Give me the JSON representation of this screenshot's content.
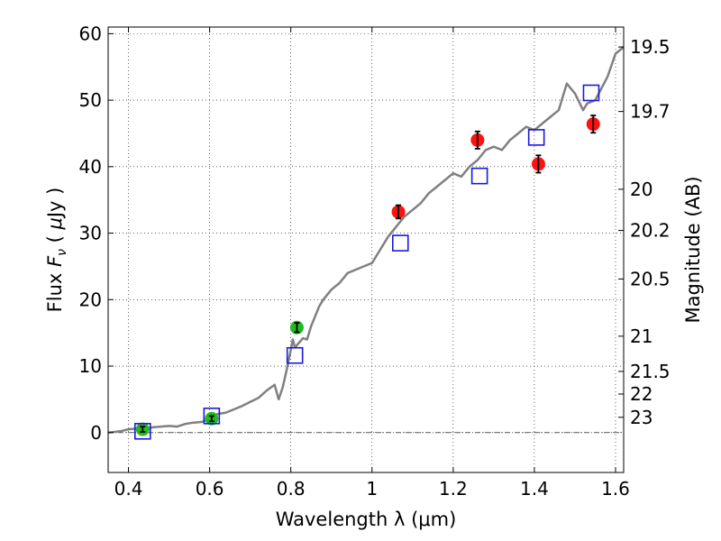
{
  "chart_data": {
    "type": "scatter",
    "xlabel": "Wavelength  λ (μm)",
    "ylabel": "Flux  F_ν  ( μJy )",
    "y2label": "Magnitude (AB)",
    "xlim": [
      0.35,
      1.62
    ],
    "ylim": [
      -6,
      61
    ],
    "grid": true,
    "x_ticks": [
      0.4,
      0.6,
      0.8,
      1.0,
      1.2,
      1.4,
      1.6
    ],
    "x_tick_labels": [
      "0.4",
      "0.6",
      "0.8",
      "1",
      "1.2",
      "1.4",
      "1.6"
    ],
    "y_ticks": [
      0,
      10,
      20,
      30,
      40,
      50,
      60
    ],
    "y_tick_labels": [
      "0",
      "10",
      "20",
      "30",
      "40",
      "50",
      "60"
    ],
    "y2_ticks": [
      {
        "label": "19.5",
        "flux": 58.0
      },
      {
        "label": "19.7",
        "flux": 48.3
      },
      {
        "label": "20",
        "flux": 36.6
      },
      {
        "label": "20.2",
        "flux": 30.4
      },
      {
        "label": "20.5",
        "flux": 23.1
      },
      {
        "label": "21",
        "flux": 14.5
      },
      {
        "label": "21.5",
        "flux": 9.2
      },
      {
        "label": "22",
        "flux": 5.8
      },
      {
        "label": "23",
        "flux": 2.3
      }
    ],
    "series": [
      {
        "kind": "line",
        "color": "#808080",
        "x": [
          0.35,
          0.38,
          0.4,
          0.42,
          0.44,
          0.46,
          0.48,
          0.5,
          0.52,
          0.54,
          0.56,
          0.58,
          0.6,
          0.62,
          0.64,
          0.66,
          0.68,
          0.7,
          0.72,
          0.74,
          0.76,
          0.77,
          0.78,
          0.79,
          0.8,
          0.805,
          0.81,
          0.83,
          0.84,
          0.85,
          0.86,
          0.87,
          0.88,
          0.9,
          0.92,
          0.94,
          0.96,
          0.98,
          1.0,
          1.02,
          1.04,
          1.06,
          1.08,
          1.1,
          1.12,
          1.14,
          1.16,
          1.18,
          1.2,
          1.22,
          1.24,
          1.26,
          1.28,
          1.3,
          1.32,
          1.34,
          1.36,
          1.38,
          1.4,
          1.42,
          1.44,
          1.46,
          1.47,
          1.48,
          1.5,
          1.52,
          1.53,
          1.55,
          1.58,
          1.6,
          1.62
        ],
        "y": [
          0.0,
          0.2,
          0.5,
          0.6,
          0.5,
          0.8,
          0.9,
          1.0,
          0.9,
          1.3,
          1.5,
          1.6,
          2.0,
          2.8,
          3.0,
          3.5,
          4.0,
          4.6,
          5.2,
          6.3,
          7.2,
          5.0,
          6.8,
          9.5,
          12.5,
          14.0,
          12.8,
          14.2,
          14.0,
          16.0,
          17.5,
          19.0,
          20.0,
          21.5,
          22.5,
          24.0,
          24.5,
          25.0,
          25.5,
          27.5,
          29.5,
          31.0,
          32.5,
          33.5,
          34.5,
          36.0,
          37.0,
          38.0,
          39.0,
          38.5,
          40.0,
          41.0,
          42.5,
          43.0,
          42.5,
          44.0,
          45.0,
          46.0,
          45.5,
          46.5,
          47.5,
          48.5,
          50.5,
          52.5,
          51.0,
          48.5,
          49.5,
          50.0,
          53.5,
          57.0,
          58.0
        ]
      },
      {
        "kind": "scatter",
        "marker": "circle",
        "color": "#22bb22",
        "x": [
          0.435,
          0.605,
          0.815
        ],
        "y": [
          0.5,
          2.1,
          15.8
        ],
        "yerr": [
          0.4,
          0.4,
          0.7
        ]
      },
      {
        "kind": "scatter",
        "marker": "circle",
        "color": "#ff1111",
        "x": [
          1.065,
          1.26,
          1.41,
          1.545
        ],
        "y": [
          33.2,
          44.0,
          40.4,
          46.4
        ],
        "yerr": [
          1.0,
          1.3,
          1.3,
          1.3
        ]
      },
      {
        "kind": "scatter",
        "marker": "open-square",
        "color": "#1a1adb",
        "x": [
          0.435,
          0.605,
          0.81,
          1.07,
          1.265,
          1.405,
          1.54
        ],
        "y": [
          0.2,
          2.5,
          11.6,
          28.5,
          38.6,
          44.4,
          51.1
        ]
      }
    ]
  }
}
